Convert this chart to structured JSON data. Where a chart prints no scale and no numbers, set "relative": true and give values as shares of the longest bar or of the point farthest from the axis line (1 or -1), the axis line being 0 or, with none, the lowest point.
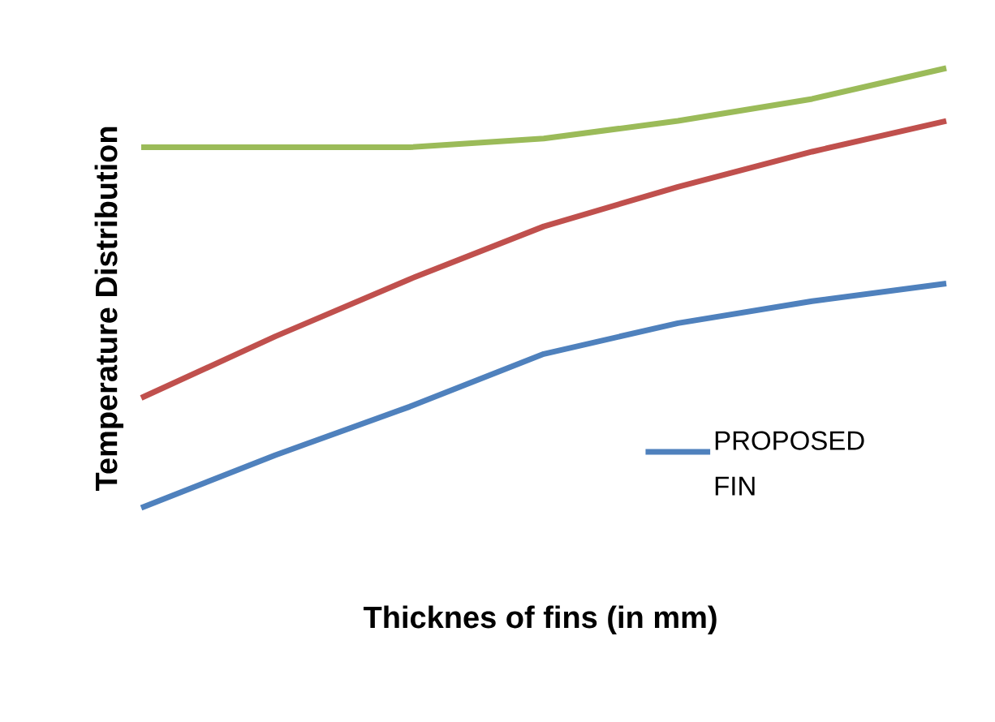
{
  "chart_data": {
    "type": "line",
    "relative": true,
    "xlabel": "Thicknes of fins (in mm)",
    "ylabel": "Temperature Distribution",
    "legend": "bottom right",
    "categories": [
      null,
      null,
      null,
      null,
      null,
      null,
      null
    ],
    "series": [
      {
        "name": "PROPOSED FIN",
        "color": "#4f81bd",
        "values": [
          0,
          0.12,
          0.23,
          0.35,
          0.42,
          0.47,
          0.51
        ]
      },
      {
        "color": "#c0504d",
        "values": [
          0.25,
          0.39,
          0.52,
          0.64,
          0.73,
          0.81,
          0.88
        ]
      },
      {
        "color": "#9bbb59",
        "values": [
          0.82,
          0.82,
          0.82,
          0.84,
          0.88,
          0.93,
          1.0
        ]
      }
    ]
  }
}
